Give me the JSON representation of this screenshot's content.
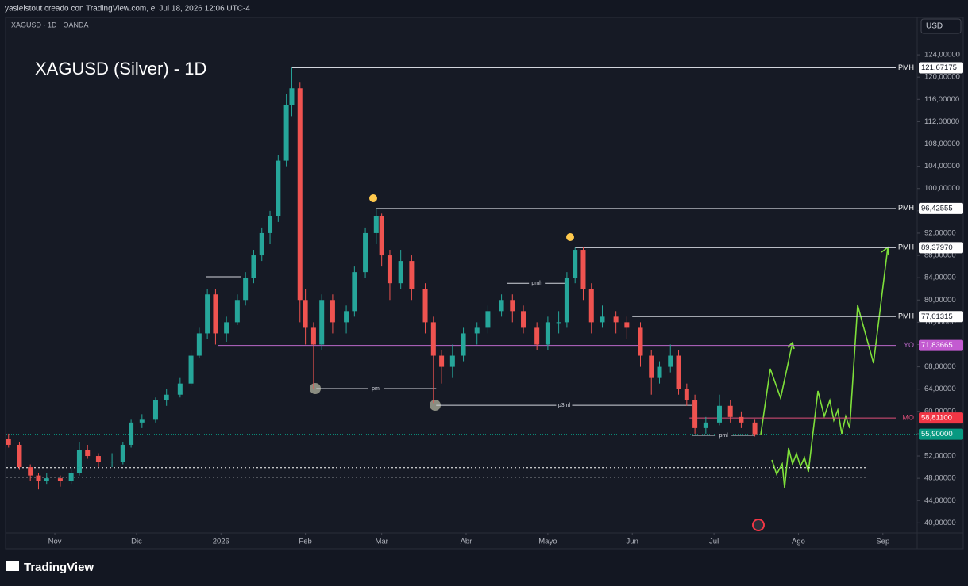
{
  "header": {
    "caption": "yasielstout creado con TradingView.com, el Jul 18, 2026 12:06 UTC-4",
    "symbol": "XAGUSD · 1D · OANDA",
    "currency": "USD"
  },
  "chart_data": {
    "type": "candlestick",
    "title": "XAGUSD (Silver) - 1D",
    "x": [
      -17,
      -13,
      -9,
      -6,
      -3,
      2,
      6,
      9,
      12,
      16,
      21,
      25,
      28,
      32,
      37,
      41,
      46,
      50,
      53,
      56,
      59,
      63,
      67,
      70,
      73,
      76,
      79,
      82,
      85,
      87,
      90,
      92,
      95,
      98,
      102,
      107,
      110,
      114,
      118,
      120,
      123,
      127,
      131,
      136,
      139,
      142,
      146,
      150,
      155,
      159,
      164,
      168,
      172,
      177,
      181,
      185,
      188,
      191,
      194,
      197,
      201,
      206,
      210,
      215,
      219,
      222,
      226,
      229,
      232,
      235,
      239,
      244,
      248,
      252,
      257
    ],
    "open": [
      55,
      54,
      50,
      48.5,
      47.5,
      48,
      47.5,
      49,
      53,
      52,
      51,
      51,
      54,
      58,
      58.5,
      62,
      63,
      65,
      70,
      74,
      81,
      74,
      76,
      80,
      84,
      88,
      92,
      95,
      105,
      115,
      118,
      80,
      75,
      72,
      80,
      76,
      78,
      85,
      92,
      95,
      88,
      83,
      87,
      82,
      76,
      70,
      68,
      70,
      74,
      75,
      78,
      80,
      78,
      75,
      72,
      76,
      76,
      84,
      89,
      82,
      76,
      77,
      76,
      75,
      70,
      66,
      68,
      70,
      64,
      62,
      57,
      58,
      61,
      59,
      58
    ],
    "high": [
      56,
      54.5,
      50.5,
      49,
      49,
      48.5,
      50,
      54.5,
      54,
      52.5,
      52.5,
      54.5,
      58.5,
      59.5,
      62.5,
      64,
      66,
      71,
      75,
      82,
      82,
      77,
      81,
      85,
      89,
      93,
      96,
      106,
      117,
      121.67,
      119,
      82,
      76,
      81,
      81,
      79,
      86,
      93,
      96.43,
      95.5,
      89,
      89,
      88,
      83,
      77,
      71,
      72,
      75,
      76,
      79,
      81,
      81,
      79,
      76,
      77,
      78,
      85,
      89.38,
      89.5,
      83,
      79,
      78,
      77,
      76,
      71,
      69,
      72,
      71,
      65,
      63,
      59,
      63,
      62,
      60,
      58.5
    ],
    "low": [
      53.5,
      49.5,
      47.5,
      46,
      47,
      46.5,
      47,
      48.5,
      51.5,
      50,
      50,
      50.5,
      53.5,
      57,
      58,
      61,
      62.5,
      64.5,
      69.5,
      73,
      72,
      72.5,
      75.5,
      79,
      83,
      87,
      90,
      94,
      104,
      113,
      76,
      72,
      64,
      71,
      74,
      74,
      77,
      84,
      90,
      86,
      80,
      82,
      80,
      74,
      61.5,
      65,
      66,
      69,
      72,
      74,
      77,
      76,
      74,
      71,
      71,
      74,
      75,
      83,
      80,
      74,
      75,
      74,
      73,
      68,
      63,
      65,
      67,
      63,
      61,
      56,
      56,
      57.5,
      58,
      57,
      55.5
    ],
    "close": [
      54,
      50,
      48.5,
      47.5,
      48,
      47.5,
      49,
      53,
      52,
      51,
      51,
      54,
      58,
      58.5,
      62,
      63,
      65,
      70,
      74,
      81,
      74,
      76,
      80,
      84,
      88,
      92,
      95,
      105,
      115,
      118,
      80,
      75,
      72,
      80,
      76,
      78,
      85,
      92,
      95,
      88,
      83,
      87,
      82,
      76,
      70,
      68,
      70,
      74,
      75,
      78,
      80,
      78,
      75,
      72,
      76,
      76,
      84,
      89,
      82,
      76,
      77,
      76,
      75,
      70,
      66,
      68,
      70,
      64,
      62,
      57,
      58,
      61,
      59,
      58,
      55.9
    ],
    "up_color": "#26a69a",
    "down_color": "#ef5350",
    "xlim": [
      -17.8,
      316.6
    ],
    "xticks": [
      {
        "value": 0,
        "label": "Nov"
      },
      {
        "value": 30,
        "label": "Dic"
      },
      {
        "value": 61,
        "label": "2026"
      },
      {
        "value": 92,
        "label": "Feb"
      },
      {
        "value": 120,
        "label": "Mar"
      },
      {
        "value": 151,
        "label": "Abr"
      },
      {
        "value": 181,
        "label": "Mayo"
      },
      {
        "value": 212,
        "label": "Jun"
      },
      {
        "value": 242,
        "label": "Jul"
      },
      {
        "value": 273,
        "label": "Ago"
      },
      {
        "value": 304,
        "label": "Sep"
      }
    ],
    "ylim": [
      38.2,
      130.7
    ],
    "yticks": [
      {
        "value": 40,
        "label": "40,00000"
      },
      {
        "value": 44,
        "label": "44,00000"
      },
      {
        "value": 48,
        "label": "48,00000"
      },
      {
        "value": 52,
        "label": "52,00000"
      },
      {
        "value": 56,
        "label": "56,00000"
      },
      {
        "value": 60,
        "label": "60,00000"
      },
      {
        "value": 64,
        "label": "64,00000"
      },
      {
        "value": 68,
        "label": "68,00000"
      },
      {
        "value": 72,
        "label": "72,00000"
      },
      {
        "value": 76,
        "label": "76,00000"
      },
      {
        "value": 80,
        "label": "80,00000"
      },
      {
        "value": 84,
        "label": "84,00000"
      },
      {
        "value": 88,
        "label": "88,00000"
      },
      {
        "value": 92,
        "label": "92,00000"
      },
      {
        "value": 96,
        "label": "96,00000"
      },
      {
        "value": 100,
        "label": "100,00000"
      },
      {
        "value": 104,
        "label": "104,00000"
      },
      {
        "value": 108,
        "label": "108,00000"
      },
      {
        "value": 112,
        "label": "112,00000"
      },
      {
        "value": 116,
        "label": "116,00000"
      },
      {
        "value": 120,
        "label": "120,00000"
      },
      {
        "value": 124,
        "label": "124,00000"
      }
    ],
    "levels": [
      {
        "name": "PMH",
        "value": 121.67175,
        "label": "121,67175",
        "start": 87,
        "color": "#d1d4dc",
        "box_color": "#ffffff",
        "text_color": "#131722"
      },
      {
        "name": "PMH",
        "value": 96.42555,
        "label": "96,42555",
        "start": 118,
        "color": "#d1d4dc",
        "box_color": "#ffffff",
        "text_color": "#131722"
      },
      {
        "name": "PMH",
        "value": 89.3797,
        "label": "89,37970",
        "start": 191,
        "color": "#d1d4dc",
        "box_color": "#ffffff",
        "text_color": "#131722"
      },
      {
        "name": "PMH",
        "value": 77.01315,
        "label": "77,01315",
        "start": 212,
        "color": "#d1d4dc",
        "box_color": "#ffffff",
        "text_color": "#131722"
      },
      {
        "name": "YO",
        "value": 71.83665,
        "label": "71,83665",
        "start": 60,
        "color": "#ba68c8",
        "box_color": "#c35bd1",
        "text_color": "#ffffff"
      },
      {
        "name": "MO",
        "value": 58.811,
        "label": "58,81100",
        "start": 233,
        "color": "#e04f7a",
        "box_color": "#f23645",
        "text_color": "#ffffff"
      }
    ],
    "drawings": [
      {
        "label": "pmh",
        "value": 83,
        "start": 166,
        "end": 188
      },
      {
        "label": "pml",
        "value": 64.1,
        "start": 96,
        "end": 140
      },
      {
        "label": "p3ml",
        "value": 61.1,
        "start": 140,
        "end": 234
      },
      {
        "label": "pml",
        "value": 55.7,
        "start": 234,
        "end": 257
      }
    ],
    "dotted_levels": [
      49.9,
      48.2
    ],
    "last_price": {
      "value": 55.9,
      "label": "55,90000",
      "color": "#089981"
    }
  },
  "footer": {
    "brand": "TradingView"
  }
}
